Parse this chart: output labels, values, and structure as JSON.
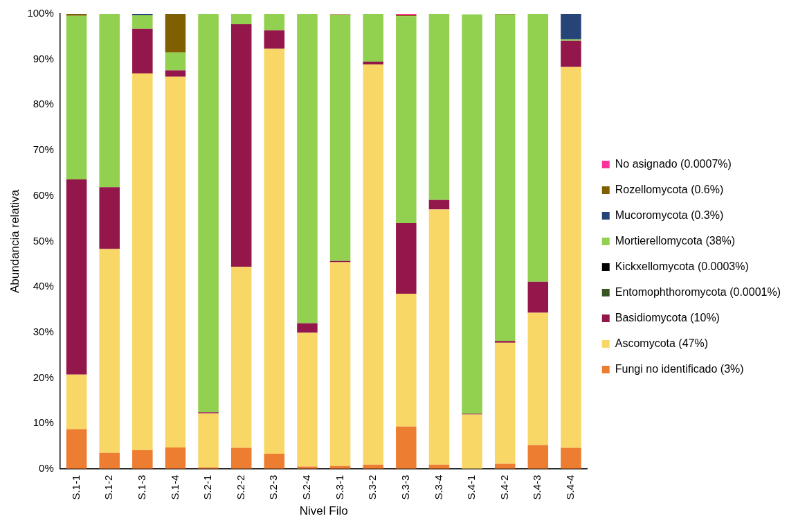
{
  "chart_data": {
    "type": "bar",
    "stacked": true,
    "xlabel": "Nivel Filo",
    "ylabel": "Abundancia relativa",
    "categories": [
      "S.1-1",
      "S.1-2",
      "S.1-3",
      "S.1-4",
      "S.2-1",
      "S.2-2",
      "S.2-3",
      "S.2-4",
      "S.3-1",
      "S.3-2",
      "S.3-3",
      "S.3-4",
      "S.4-1",
      "S.4-2",
      "S.4-3",
      "S.4-4"
    ],
    "ylim": [
      0,
      100
    ],
    "yticks": [
      {
        "value": 0,
        "label": "0%"
      },
      {
        "value": 10,
        "label": "10%"
      },
      {
        "value": 20,
        "label": "20%"
      },
      {
        "value": 30,
        "label": "30%"
      },
      {
        "value": 40,
        "label": "40%"
      },
      {
        "value": 50,
        "label": "50%"
      },
      {
        "value": 60,
        "label": "60%"
      },
      {
        "value": 70,
        "label": "70%"
      },
      {
        "value": 80,
        "label": "80%"
      },
      {
        "value": 90,
        "label": "90%"
      },
      {
        "value": 100,
        "label": "100%"
      }
    ],
    "grid": false,
    "legend": "right",
    "series": [
      {
        "name": "Fungi no identificado (3%)",
        "color": "#ed7d31",
        "values": [
          8.7,
          3.5,
          4.1,
          4.7,
          0.3,
          4.6,
          3.3,
          0.5,
          0.6,
          0.9,
          9.3,
          0.9,
          null,
          1.1,
          5.2,
          4.6
        ]
      },
      {
        "name": "Ascomycota (47%)",
        "color": "#f9d767",
        "values": [
          12.0,
          44.8,
          82.8,
          81.5,
          11.9,
          39.8,
          89.0,
          29.4,
          44.8,
          88.0,
          29.2,
          56.1,
          11.9,
          26.6,
          29.1,
          83.7
        ]
      },
      {
        "name": "Basidiomycota (10%)",
        "color": "#93174a",
        "values": [
          42.9,
          13.6,
          9.8,
          1.4,
          0.2,
          53.3,
          4.1,
          2.1,
          0.3,
          0.6,
          15.5,
          2.1,
          0.2,
          0.4,
          6.8,
          5.8
        ]
      },
      {
        "name": "Entomophthoromycota (0.0001%)",
        "color": "#375623",
        "values": [
          0,
          0,
          0,
          0,
          0,
          0,
          0,
          0,
          0,
          0,
          0,
          0,
          0,
          0,
          0,
          0
        ]
      },
      {
        "name": "Kickxellomycota (0.0003%)",
        "color": "#000000",
        "values": [
          0,
          0,
          0,
          0,
          0,
          0,
          0,
          0,
          0,
          0,
          0,
          0,
          0,
          0,
          0,
          0
        ]
      },
      {
        "name": "Mortierellomycota (38%)",
        "color": "#92d050",
        "values": [
          36.0,
          38.1,
          3.0,
          3.9,
          87.6,
          2.3,
          3.6,
          68.0,
          54.2,
          10.5,
          45.5,
          40.9,
          87.8,
          71.8,
          58.9,
          0.3
        ]
      },
      {
        "name": "Mucoromycota (0.3%)",
        "color": "#264478",
        "values": [
          0,
          0,
          0.3,
          0,
          0,
          0,
          0,
          0,
          0,
          0,
          0,
          0,
          0,
          0,
          0,
          5.6
        ]
      },
      {
        "name": "Rozellomycota (0.6%)",
        "color": "#7f5f00",
        "values": [
          0.4,
          0,
          0,
          8.5,
          0,
          0,
          0,
          0,
          0,
          0,
          0.2,
          0,
          0,
          0.1,
          0,
          0
        ]
      },
      {
        "name": "No asignado (0.0007%)",
        "color": "#ff3399",
        "values": [
          0,
          0,
          0,
          0,
          0,
          0,
          0,
          0,
          0.1,
          0,
          0.3,
          0,
          0,
          0,
          0,
          0
        ]
      }
    ]
  }
}
